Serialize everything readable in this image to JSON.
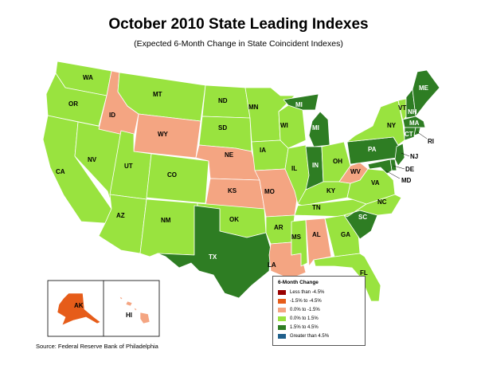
{
  "title": "October 2010 State Leading Indexes",
  "subtitle": "(Expected 6-Month Change in State Coincident Indexes)",
  "source": "Source: Federal Reserve Bank of Philadelphia",
  "legend": {
    "title": "6-Month Change",
    "items": [
      {
        "label": "Less than -4.5%",
        "color": "#990000"
      },
      {
        "label": "-1.5% to -4.5%",
        "color": "#e65c19"
      },
      {
        "label": "0.0% to -1.5%",
        "color": "#f4a582"
      },
      {
        "label": "0.0% to  1.5%",
        "color": "#99e33f"
      },
      {
        "label": "1.5% to  4.5%",
        "color": "#2e7d23"
      },
      {
        "label": "Greater than 4.5%",
        "color": "#1f5f8b"
      }
    ]
  },
  "states": {
    "WA": {
      "label": "WA",
      "category": "0.0% to  1.5%"
    },
    "OR": {
      "label": "OR",
      "category": "0.0% to  1.5%"
    },
    "CA": {
      "label": "CA",
      "category": "0.0% to  1.5%"
    },
    "NV": {
      "label": "NV",
      "category": "0.0% to  1.5%"
    },
    "ID": {
      "label": "ID",
      "category": "0.0% to -1.5%"
    },
    "MT": {
      "label": "MT",
      "category": "0.0% to  1.5%"
    },
    "WY": {
      "label": "WY",
      "category": "0.0% to -1.5%"
    },
    "UT": {
      "label": "UT",
      "category": "0.0% to  1.5%"
    },
    "CO": {
      "label": "CO",
      "category": "0.0% to  1.5%"
    },
    "AZ": {
      "label": "AZ",
      "category": "0.0% to  1.5%"
    },
    "NM": {
      "label": "NM",
      "category": "0.0% to  1.5%"
    },
    "ND": {
      "label": "ND",
      "category": "0.0% to  1.5%"
    },
    "SD": {
      "label": "SD",
      "category": "0.0% to  1.5%"
    },
    "NE": {
      "label": "NE",
      "category": "0.0% to -1.5%"
    },
    "KS": {
      "label": "KS",
      "category": "0.0% to -1.5%"
    },
    "OK": {
      "label": "OK",
      "category": "0.0% to  1.5%"
    },
    "TX": {
      "label": "TX",
      "category": "1.5% to  4.5%"
    },
    "MN": {
      "label": "MN",
      "category": "0.0% to  1.5%"
    },
    "IA": {
      "label": "IA",
      "category": "0.0% to  1.5%"
    },
    "MO": {
      "label": "MO",
      "category": "0.0% to -1.5%"
    },
    "AR": {
      "label": "AR",
      "category": "0.0% to  1.5%"
    },
    "LA": {
      "label": "LA",
      "category": "0.0% to -1.5%"
    },
    "WI": {
      "label": "WI",
      "category": "0.0% to  1.5%"
    },
    "IL": {
      "label": "IL",
      "category": "0.0% to  1.5%"
    },
    "MI": {
      "label": "MI",
      "category": "1.5% to  4.5%"
    },
    "IN": {
      "label": "IN",
      "category": "1.5% to  4.5%"
    },
    "OH": {
      "label": "OH",
      "category": "0.0% to  1.5%"
    },
    "KY": {
      "label": "KY",
      "category": "0.0% to  1.5%"
    },
    "TN": {
      "label": "TN",
      "category": "0.0% to  1.5%"
    },
    "MS": {
      "label": "MS",
      "category": "0.0% to  1.5%"
    },
    "AL": {
      "label": "AL",
      "category": "0.0% to -1.5%"
    },
    "GA": {
      "label": "GA",
      "category": "0.0% to  1.5%"
    },
    "FL": {
      "label": "FL",
      "category": "0.0% to  1.5%"
    },
    "SC": {
      "label": "SC",
      "category": "1.5% to  4.5%"
    },
    "NC": {
      "label": "NC",
      "category": "0.0% to  1.5%"
    },
    "VA": {
      "label": "VA",
      "category": "0.0% to  1.5%"
    },
    "WV": {
      "label": "WV",
      "category": "0.0% to -1.5%"
    },
    "PA": {
      "label": "PA",
      "category": "1.5% to  4.5%"
    },
    "NY": {
      "label": "NY",
      "category": "0.0% to  1.5%"
    },
    "VT": {
      "label": "VT",
      "category": "0.0% to  1.5%"
    },
    "NH": {
      "label": "NH",
      "category": "1.5% to  4.5%"
    },
    "ME": {
      "label": "ME",
      "category": "1.5% to  4.5%"
    },
    "MA": {
      "label": "MA",
      "category": "1.5% to  4.5%"
    },
    "CT": {
      "label": "CT",
      "category": "1.5% to  4.5%"
    },
    "RI": {
      "label": "RI",
      "category": "1.5% to  4.5%"
    },
    "NJ": {
      "label": "NJ",
      "category": "1.5% to  4.5%"
    },
    "DE": {
      "label": "DE",
      "category": "1.5% to  4.5%"
    },
    "MD": {
      "label": "MD",
      "category": "1.5% to  4.5%"
    },
    "AK": {
      "label": "AK",
      "category": "-1.5% to -4.5%"
    },
    "HI": {
      "label": "HI",
      "category": "0.0% to -1.5%"
    }
  }
}
